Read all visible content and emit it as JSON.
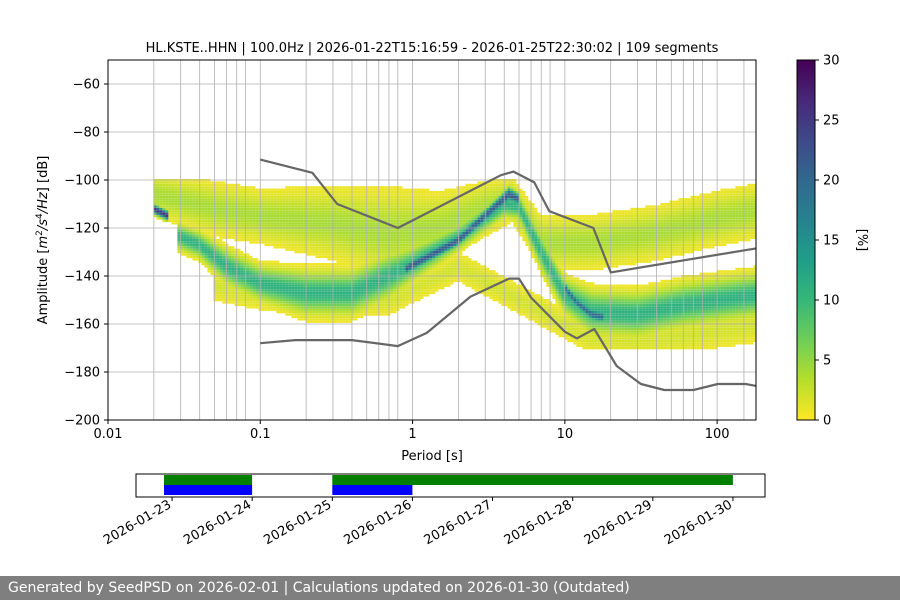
{
  "chart_data": {
    "type": "heatmap",
    "title": "HL.KSTE..HHN | 100.0Hz | 2026-01-22T15:16:59 - 2026-01-25T22:30:02 | 109 segments",
    "xlabel": "Period [s]",
    "ylabel_parts": [
      "Amplitude [",
      "m",
      "2",
      "/",
      "s",
      "4",
      "/",
      "Hz",
      "] [dB]"
    ],
    "xscale": "log",
    "xlim": [
      0.01,
      180
    ],
    "ylim": [
      -200,
      -50
    ],
    "x_ticks": [
      {
        "value": 0.01,
        "label": "0.01"
      },
      {
        "value": 0.1,
        "label": "0.1"
      },
      {
        "value": 1,
        "label": "1"
      },
      {
        "value": 10,
        "label": "10"
      },
      {
        "value": 100,
        "label": "100"
      }
    ],
    "y_ticks": [
      {
        "value": -60,
        "label": "−60"
      },
      {
        "value": -80,
        "label": "−80"
      },
      {
        "value": -100,
        "label": "−100"
      },
      {
        "value": -120,
        "label": "−120"
      },
      {
        "value": -140,
        "label": "−140"
      },
      {
        "value": -160,
        "label": "−160"
      },
      {
        "value": -180,
        "label": "−180"
      },
      {
        "value": -200,
        "label": "−200"
      }
    ],
    "period_gridlines": [
      0.02,
      0.03,
      0.04,
      0.05,
      0.06,
      0.07,
      0.08,
      0.1,
      0.2,
      0.3,
      0.4,
      0.5,
      0.6,
      0.7,
      0.8,
      1,
      2,
      3,
      4,
      5,
      6,
      7,
      8,
      10,
      20,
      30,
      40,
      50,
      60,
      70,
      80,
      100,
      150
    ],
    "colorbar": {
      "label": "[%]",
      "min": 0,
      "max": 30,
      "ticks": [
        {
          "value": 0,
          "label": "0"
        },
        {
          "value": 5,
          "label": "5"
        },
        {
          "value": 10,
          "label": "10"
        },
        {
          "value": 15,
          "label": "15"
        },
        {
          "value": 20,
          "label": "20"
        },
        {
          "value": 25,
          "label": "25"
        },
        {
          "value": 30,
          "label": "30"
        }
      ],
      "colormap": [
        "#fde725",
        "#b5de2b",
        "#6ece58",
        "#35b779",
        "#1f9e89",
        "#26828e",
        "#31688e",
        "#3e4989",
        "#482878",
        "#440154"
      ]
    },
    "noise_models": [
      {
        "name": "high_noise_model",
        "color": "#666666",
        "points": [
          [
            0.1,
            -91.5
          ],
          [
            0.22,
            -97
          ],
          [
            0.32,
            -110
          ],
          [
            0.8,
            -120
          ],
          [
            3.8,
            -98
          ],
          [
            4.6,
            -96.5
          ],
          [
            6.3,
            -101
          ],
          [
            7.9,
            -113
          ],
          [
            15.4,
            -120
          ],
          [
            20,
            -138.5
          ],
          [
            180,
            -128.5
          ]
        ]
      },
      {
        "name": "low_noise_model",
        "color": "#666666",
        "points": [
          [
            0.1,
            -168
          ],
          [
            0.17,
            -166.7
          ],
          [
            0.4,
            -166.7
          ],
          [
            0.8,
            -169.2
          ],
          [
            1.24,
            -163.7
          ],
          [
            2.4,
            -148.6
          ],
          [
            4.3,
            -141.1
          ],
          [
            5,
            -141.1
          ],
          [
            6,
            -149
          ],
          [
            10,
            -163.2
          ],
          [
            12,
            -166
          ],
          [
            15.6,
            -162.1
          ],
          [
            21.9,
            -177.5
          ],
          [
            31.6,
            -185
          ],
          [
            45,
            -187.5
          ],
          [
            70,
            -187.5
          ],
          [
            101,
            -185
          ],
          [
            154,
            -185
          ],
          [
            180,
            -185.8
          ]
        ]
      }
    ],
    "density_bands": [
      {
        "name": "main_band",
        "peak_percent": 11,
        "points": [
          [
            0.028,
            -123,
            3
          ],
          [
            0.04,
            -127,
            3
          ],
          [
            0.06,
            -136,
            4
          ],
          [
            0.1,
            -143,
            4
          ],
          [
            0.2,
            -147,
            5
          ],
          [
            0.4,
            -147,
            5
          ],
          [
            0.7,
            -140,
            5
          ],
          [
            1,
            -135,
            4
          ],
          [
            2,
            -124,
            3
          ],
          [
            4,
            -110,
            3
          ],
          [
            5,
            -111,
            3
          ],
          [
            7,
            -130,
            4
          ],
          [
            10,
            -148,
            4
          ],
          [
            15,
            -155,
            5
          ],
          [
            30,
            -156,
            5
          ],
          [
            60,
            -152,
            5
          ],
          [
            100,
            -150,
            5
          ],
          [
            180,
            -148,
            5
          ]
        ]
      },
      {
        "name": "upper_band",
        "peak_percent": 4,
        "points": [
          [
            0.02,
            -106,
            5
          ],
          [
            0.05,
            -112,
            6
          ],
          [
            0.1,
            -115,
            6
          ],
          [
            0.3,
            -118,
            8
          ],
          [
            0.7,
            -122,
            10
          ],
          [
            1.5,
            -120,
            8
          ],
          [
            3,
            -112,
            6
          ],
          [
            4.5,
            -108,
            5
          ],
          [
            7,
            -126,
            6
          ],
          [
            15,
            -126,
            6
          ],
          [
            40,
            -122,
            6
          ],
          [
            100,
            -116,
            6
          ],
          [
            180,
            -113,
            6
          ]
        ]
      },
      {
        "name": "low_band",
        "peak_percent": 2,
        "points": [
          [
            0.05,
            -144,
            4
          ],
          [
            0.1,
            -148,
            4
          ],
          [
            0.3,
            -151,
            4
          ],
          [
            0.7,
            -150,
            4
          ],
          [
            2,
            -136,
            4
          ],
          [
            15,
            -166,
            4
          ],
          [
            40,
            -166,
            5
          ],
          [
            180,
            -160,
            5
          ]
        ]
      },
      {
        "name": "dark_start",
        "peak_percent": 26,
        "points": [
          [
            0.02,
            -112,
            1.2
          ],
          [
            0.025,
            -115,
            1.2
          ]
        ]
      },
      {
        "name": "dark_ridge",
        "peak_percent": 22,
        "points": [
          [
            0.9,
            -137,
            1.5
          ],
          [
            2,
            -125,
            1.5
          ],
          [
            3.5,
            -111,
            1.6
          ],
          [
            4.3,
            -106,
            1.8
          ],
          [
            5,
            -108,
            1.5
          ]
        ]
      },
      {
        "name": "dark_drop",
        "peak_percent": 20,
        "points": [
          [
            10,
            -145,
            1.4
          ],
          [
            12,
            -151,
            1.4
          ],
          [
            15,
            -156,
            1.5
          ],
          [
            18,
            -157,
            1.5
          ]
        ]
      }
    ],
    "availability": {
      "date_ticks": [
        "2026-01-23",
        "2026-01-24",
        "2026-01-25",
        "2026-01-26",
        "2026-01-27",
        "2026-01-28",
        "2026-01-29",
        "2026-01-30"
      ],
      "range_start_day": 22.55,
      "range_end_day": 30.4,
      "rows": [
        {
          "name": "data_available",
          "color": "#008000",
          "segments": [
            [
              22.9,
              24.0
            ],
            [
              25.0,
              30.0
            ]
          ]
        },
        {
          "name": "psd_calculated",
          "color": "#0000ff",
          "segments": [
            [
              22.9,
              24.0
            ],
            [
              25.0,
              26.0
            ]
          ]
        }
      ]
    }
  },
  "footer": {
    "text": "Generated by SeedPSD on 2026-02-01 | Calculations updated on 2026-01-30 (Outdated)"
  }
}
